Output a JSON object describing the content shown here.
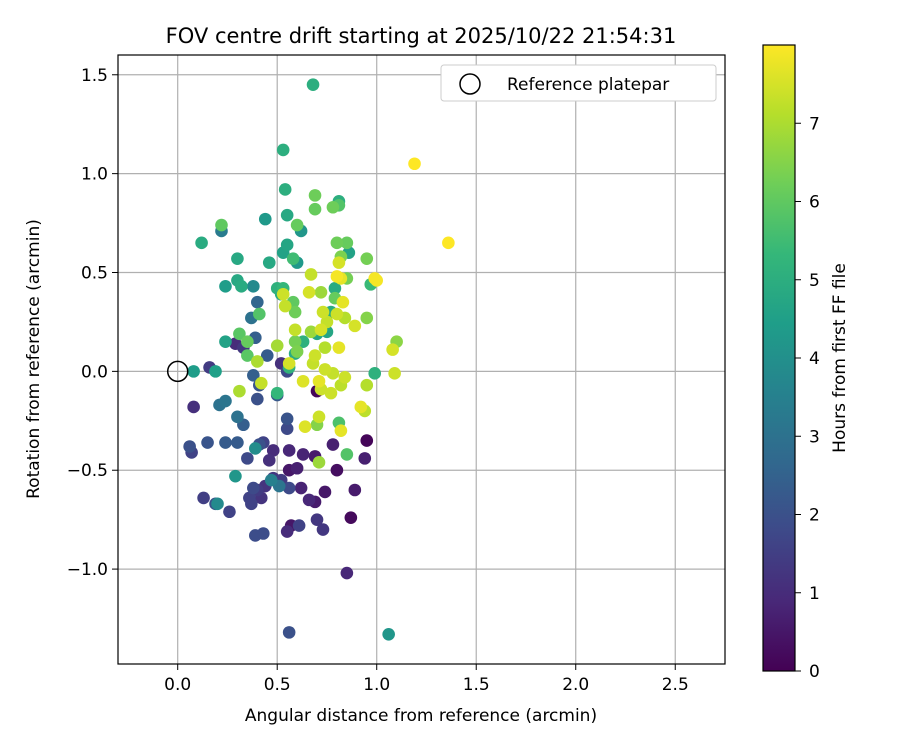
{
  "chart_data": {
    "type": "scatter",
    "title": "FOV centre drift starting at 2025/10/22 21:54:31",
    "xlabel": "Angular distance from reference (arcmin)",
    "ylabel": "Rotation from reference (arcmin)",
    "xlim": [
      -0.3,
      2.75
    ],
    "ylim": [
      -1.48,
      1.6
    ],
    "xticks": [
      0.0,
      0.5,
      1.0,
      1.5,
      2.0,
      2.5
    ],
    "xtick_labels": [
      "0.0",
      "0.5",
      "1.0",
      "1.5",
      "2.0",
      "2.5"
    ],
    "yticks": [
      -1.0,
      -0.5,
      0.0,
      0.5,
      1.0,
      1.5
    ],
    "ytick_labels": [
      "−1.0",
      "−0.5",
      "0.0",
      "0.5",
      "1.0",
      "1.5"
    ],
    "grid": true,
    "legend": {
      "label": "Reference platepar",
      "placement": "top-right"
    },
    "reference_point": {
      "x": 0.0,
      "y": 0.0
    },
    "colorbar": {
      "label": "Hours from first FF file",
      "range": [
        0,
        8
      ],
      "ticks": [
        0,
        1,
        2,
        3,
        4,
        5,
        6,
        7
      ],
      "tick_labels": [
        "0",
        "1",
        "2",
        "3",
        "4",
        "5",
        "6",
        "7"
      ],
      "colormap": [
        "#440154",
        "#482878",
        "#3e4989",
        "#31688e",
        "#26828e",
        "#1f9e89",
        "#35b779",
        "#6ece58",
        "#b5de2b",
        "#fde725"
      ]
    },
    "points": [
      {
        "x": 0.7,
        "y": -0.1,
        "h": 0.1
      },
      {
        "x": 0.95,
        "y": -0.35,
        "h": 0.1
      },
      {
        "x": 0.87,
        "y": -0.74,
        "h": 0.2
      },
      {
        "x": 0.85,
        "y": -1.02,
        "h": 0.9
      },
      {
        "x": 0.8,
        "y": -0.5,
        "h": 0.3
      },
      {
        "x": 0.89,
        "y": -0.6,
        "h": 0.6
      },
      {
        "x": 0.94,
        "y": -0.44,
        "h": 0.7
      },
      {
        "x": 0.78,
        "y": -0.37,
        "h": 0.7
      },
      {
        "x": 0.74,
        "y": -0.61,
        "h": 0.5
      },
      {
        "x": 0.69,
        "y": -0.43,
        "h": 0.6
      },
      {
        "x": 0.63,
        "y": -0.42,
        "h": 0.8
      },
      {
        "x": 0.56,
        "y": -0.4,
        "h": 0.9
      },
      {
        "x": 0.56,
        "y": -0.5,
        "h": 0.5
      },
      {
        "x": 0.6,
        "y": -0.49,
        "h": 0.7
      },
      {
        "x": 0.62,
        "y": -0.59,
        "h": 0.8
      },
      {
        "x": 0.66,
        "y": -0.65,
        "h": 0.9
      },
      {
        "x": 0.69,
        "y": -0.66,
        "h": 0.6
      },
      {
        "x": 0.7,
        "y": -0.75,
        "h": 1.3
      },
      {
        "x": 0.73,
        "y": -0.8,
        "h": 1.3
      },
      {
        "x": 0.57,
        "y": -0.78,
        "h": 0.5
      },
      {
        "x": 0.55,
        "y": -0.81,
        "h": 1.0
      },
      {
        "x": 0.61,
        "y": -0.78,
        "h": 1.6
      },
      {
        "x": 0.56,
        "y": -1.32,
        "h": 2.0
      },
      {
        "x": 0.48,
        "y": -0.4,
        "h": 1.0
      },
      {
        "x": 0.46,
        "y": -0.45,
        "h": 1.1
      },
      {
        "x": 0.48,
        "y": -0.54,
        "h": 1.3
      },
      {
        "x": 0.52,
        "y": -0.55,
        "h": 1.4
      },
      {
        "x": 0.56,
        "y": -0.59,
        "h": 1.8
      },
      {
        "x": 0.44,
        "y": -0.58,
        "h": 1.2
      },
      {
        "x": 0.42,
        "y": -0.64,
        "h": 1.2
      },
      {
        "x": 0.4,
        "y": -0.6,
        "h": 1.4
      },
      {
        "x": 0.38,
        "y": -0.59,
        "h": 1.8
      },
      {
        "x": 0.36,
        "y": -0.64,
        "h": 1.6
      },
      {
        "x": 0.37,
        "y": -0.67,
        "h": 1.6
      },
      {
        "x": 0.39,
        "y": -0.83,
        "h": 1.9
      },
      {
        "x": 0.43,
        "y": -0.82,
        "h": 1.9
      },
      {
        "x": 0.26,
        "y": -0.71,
        "h": 1.6
      },
      {
        "x": 0.19,
        "y": -0.67,
        "h": 2.0
      },
      {
        "x": 0.13,
        "y": -0.64,
        "h": 1.5
      },
      {
        "x": 0.2,
        "y": -0.67,
        "h": 3.8
      },
      {
        "x": 0.06,
        "y": -0.38,
        "h": 2.0
      },
      {
        "x": 0.07,
        "y": -0.41,
        "h": 1.6
      },
      {
        "x": 0.15,
        "y": -0.36,
        "h": 2.1
      },
      {
        "x": 0.24,
        "y": -0.36,
        "h": 2.3
      },
      {
        "x": 0.3,
        "y": -0.36,
        "h": 2.3
      },
      {
        "x": 0.08,
        "y": -0.18,
        "h": 1.1
      },
      {
        "x": 0.21,
        "y": -0.17,
        "h": 3.0
      },
      {
        "x": 0.24,
        "y": -0.15,
        "h": 3.1
      },
      {
        "x": 0.3,
        "y": -0.23,
        "h": 3.0
      },
      {
        "x": 0.33,
        "y": -0.27,
        "h": 2.4
      },
      {
        "x": 0.35,
        "y": -0.44,
        "h": 1.8
      },
      {
        "x": 0.39,
        "y": -0.39,
        "h": 3.9
      },
      {
        "x": 0.41,
        "y": -0.37,
        "h": 2.0
      },
      {
        "x": 0.43,
        "y": -0.36,
        "h": 1.6
      },
      {
        "x": 0.4,
        "y": -0.14,
        "h": 2.0
      },
      {
        "x": 0.38,
        "y": -0.02,
        "h": 2.4
      },
      {
        "x": 0.41,
        "y": -0.07,
        "h": 2.1
      },
      {
        "x": 0.5,
        "y": -0.12,
        "h": 2.2
      },
      {
        "x": 0.55,
        "y": -0.24,
        "h": 2.1
      },
      {
        "x": 0.55,
        "y": -0.29,
        "h": 1.8
      },
      {
        "x": 0.16,
        "y": 0.02,
        "h": 1.4
      },
      {
        "x": 0.29,
        "y": 0.14,
        "h": 1.0
      },
      {
        "x": 0.33,
        "y": 0.12,
        "h": 1.3
      },
      {
        "x": 0.39,
        "y": 0.17,
        "h": 2.4
      },
      {
        "x": 0.37,
        "y": 0.27,
        "h": 3.0
      },
      {
        "x": 0.4,
        "y": 0.35,
        "h": 2.6
      },
      {
        "x": 0.45,
        "y": 0.08,
        "h": 2.3
      },
      {
        "x": 0.52,
        "y": 0.04,
        "h": 1.1
      },
      {
        "x": 0.55,
        "y": 0.0,
        "h": 1.8
      },
      {
        "x": 0.08,
        "y": 0.0,
        "h": 4.4
      },
      {
        "x": 0.19,
        "y": 0.0,
        "h": 4.5
      },
      {
        "x": 0.24,
        "y": 0.15,
        "h": 4.6
      },
      {
        "x": 0.29,
        "y": -0.53,
        "h": 4.2
      },
      {
        "x": 0.24,
        "y": 0.43,
        "h": 4.4
      },
      {
        "x": 0.3,
        "y": 0.46,
        "h": 4.8
      },
      {
        "x": 0.32,
        "y": 0.43,
        "h": 4.9
      },
      {
        "x": 0.38,
        "y": 0.43,
        "h": 3.8
      },
      {
        "x": 0.3,
        "y": 0.57,
        "h": 4.8
      },
      {
        "x": 0.12,
        "y": 0.65,
        "h": 4.9
      },
      {
        "x": 0.22,
        "y": 0.71,
        "h": 3.3
      },
      {
        "x": 0.44,
        "y": 0.77,
        "h": 4.3
      },
      {
        "x": 0.46,
        "y": 0.55,
        "h": 4.8
      },
      {
        "x": 0.53,
        "y": 0.6,
        "h": 4.6
      },
      {
        "x": 0.55,
        "y": 0.64,
        "h": 4.7
      },
      {
        "x": 0.6,
        "y": 0.55,
        "h": 4.3
      },
      {
        "x": 0.58,
        "y": 0.57,
        "h": 5.5
      },
      {
        "x": 0.62,
        "y": 0.71,
        "h": 4.2
      },
      {
        "x": 0.55,
        "y": 0.79,
        "h": 4.8
      },
      {
        "x": 0.54,
        "y": 0.92,
        "h": 5.0
      },
      {
        "x": 0.53,
        "y": 1.12,
        "h": 5.0
      },
      {
        "x": 0.68,
        "y": 1.45,
        "h": 5.0
      },
      {
        "x": 0.81,
        "y": 0.86,
        "h": 5.0
      },
      {
        "x": 0.86,
        "y": 0.6,
        "h": 4.6
      },
      {
        "x": 0.79,
        "y": 0.42,
        "h": 4.9
      },
      {
        "x": 0.77,
        "y": 0.3,
        "h": 4.9
      },
      {
        "x": 0.75,
        "y": 0.2,
        "h": 4.7
      },
      {
        "x": 0.7,
        "y": 0.19,
        "h": 4.7
      },
      {
        "x": 0.63,
        "y": 0.15,
        "h": 5.1
      },
      {
        "x": 0.59,
        "y": 0.09,
        "h": 4.9
      },
      {
        "x": 0.56,
        "y": 0.02,
        "h": 5.2
      },
      {
        "x": 0.5,
        "y": 0.42,
        "h": 5.1
      },
      {
        "x": 0.52,
        "y": 0.39,
        "h": 4.9
      },
      {
        "x": 0.53,
        "y": 0.42,
        "h": 5.3
      },
      {
        "x": 0.5,
        "y": -0.11,
        "h": 5.3
      },
      {
        "x": 0.47,
        "y": -0.55,
        "h": 3.5
      },
      {
        "x": 0.51,
        "y": -0.58,
        "h": 3.1
      },
      {
        "x": 0.99,
        "y": -0.01,
        "h": 5.1
      },
      {
        "x": 0.97,
        "y": 0.44,
        "h": 5.4
      },
      {
        "x": 0.85,
        "y": -0.42,
        "h": 5.8
      },
      {
        "x": 0.81,
        "y": -0.26,
        "h": 5.7
      },
      {
        "x": 0.35,
        "y": 0.08,
        "h": 5.9
      },
      {
        "x": 0.31,
        "y": 0.19,
        "h": 5.9
      },
      {
        "x": 0.35,
        "y": 0.15,
        "h": 6.1
      },
      {
        "x": 0.41,
        "y": 0.29,
        "h": 5.8
      },
      {
        "x": 0.22,
        "y": 0.74,
        "h": 6.0
      },
      {
        "x": 0.6,
        "y": 0.74,
        "h": 6.1
      },
      {
        "x": 0.58,
        "y": 0.35,
        "h": 6.0
      },
      {
        "x": 0.59,
        "y": 0.3,
        "h": 6.2
      },
      {
        "x": 0.59,
        "y": 0.15,
        "h": 6.3
      },
      {
        "x": 0.6,
        "y": 0.1,
        "h": 6.4
      },
      {
        "x": 0.69,
        "y": 0.89,
        "h": 6.2
      },
      {
        "x": 0.69,
        "y": 0.82,
        "h": 6.1
      },
      {
        "x": 0.78,
        "y": 0.83,
        "h": 6.2
      },
      {
        "x": 0.81,
        "y": 0.84,
        "h": 5.8
      },
      {
        "x": 0.8,
        "y": 0.65,
        "h": 6.2
      },
      {
        "x": 0.85,
        "y": 0.65,
        "h": 6.1
      },
      {
        "x": 0.82,
        "y": 0.58,
        "h": 6.4
      },
      {
        "x": 0.85,
        "y": 0.47,
        "h": 6.3
      },
      {
        "x": 0.79,
        "y": 0.37,
        "h": 6.1
      },
      {
        "x": 0.95,
        "y": 0.57,
        "h": 6.3
      },
      {
        "x": 0.95,
        "y": 0.27,
        "h": 6.5
      },
      {
        "x": 1.1,
        "y": 0.15,
        "h": 6.6
      },
      {
        "x": 0.67,
        "y": 0.2,
        "h": 6.8
      },
      {
        "x": 0.72,
        "y": 0.4,
        "h": 6.8
      },
      {
        "x": 0.7,
        "y": -0.27,
        "h": 6.5
      },
      {
        "x": 0.71,
        "y": -0.46,
        "h": 6.8
      },
      {
        "x": 0.42,
        "y": -0.06,
        "h": 7.3
      },
      {
        "x": 0.31,
        "y": -0.1,
        "h": 7.0
      },
      {
        "x": 0.4,
        "y": 0.05,
        "h": 7.0
      },
      {
        "x": 0.5,
        "y": 0.13,
        "h": 6.9
      },
      {
        "x": 0.54,
        "y": 0.33,
        "h": 7.3
      },
      {
        "x": 0.53,
        "y": 0.39,
        "h": 7.4
      },
      {
        "x": 0.59,
        "y": 0.21,
        "h": 7.3
      },
      {
        "x": 0.56,
        "y": 0.04,
        "h": 7.5
      },
      {
        "x": 0.63,
        "y": -0.05,
        "h": 7.6
      },
      {
        "x": 0.67,
        "y": 0.49,
        "h": 7.3
      },
      {
        "x": 0.66,
        "y": 0.4,
        "h": 7.5
      },
      {
        "x": 0.73,
        "y": 0.3,
        "h": 7.4
      },
      {
        "x": 0.75,
        "y": 0.25,
        "h": 7.3
      },
      {
        "x": 0.72,
        "y": 0.21,
        "h": 7.5
      },
      {
        "x": 0.69,
        "y": 0.08,
        "h": 7.4
      },
      {
        "x": 0.68,
        "y": 0.04,
        "h": 7.3
      },
      {
        "x": 0.74,
        "y": 0.12,
        "h": 7.1
      },
      {
        "x": 0.74,
        "y": 0.01,
        "h": 7.4
      },
      {
        "x": 0.71,
        "y": -0.05,
        "h": 7.7
      },
      {
        "x": 0.72,
        "y": -0.09,
        "h": 7.4
      },
      {
        "x": 0.78,
        "y": -0.01,
        "h": 7.3
      },
      {
        "x": 0.82,
        "y": -0.07,
        "h": 7.2
      },
      {
        "x": 0.81,
        "y": 0.12,
        "h": 7.7
      },
      {
        "x": 0.84,
        "y": -0.03,
        "h": 7.4
      },
      {
        "x": 0.77,
        "y": -0.11,
        "h": 7.4
      },
      {
        "x": 0.71,
        "y": -0.23,
        "h": 7.4
      },
      {
        "x": 0.64,
        "y": -0.28,
        "h": 7.6
      },
      {
        "x": 0.82,
        "y": -0.3,
        "h": 7.7
      },
      {
        "x": 0.92,
        "y": -0.18,
        "h": 7.7
      },
      {
        "x": 0.94,
        "y": -0.2,
        "h": 7.2
      },
      {
        "x": 0.8,
        "y": 0.48,
        "h": 7.9
      },
      {
        "x": 0.81,
        "y": 0.55,
        "h": 7.5
      },
      {
        "x": 0.82,
        "y": 0.47,
        "h": 7.7
      },
      {
        "x": 0.83,
        "y": 0.35,
        "h": 7.7
      },
      {
        "x": 0.8,
        "y": 0.29,
        "h": 7.4
      },
      {
        "x": 0.84,
        "y": 0.27,
        "h": 7.1
      },
      {
        "x": 0.89,
        "y": 0.23,
        "h": 7.5
      },
      {
        "x": 0.95,
        "y": -0.07,
        "h": 7.1
      },
      {
        "x": 1.0,
        "y": 0.46,
        "h": 7.9
      },
      {
        "x": 0.99,
        "y": 0.47,
        "h": 7.9
      },
      {
        "x": 1.08,
        "y": 0.11,
        "h": 7.5
      },
      {
        "x": 1.09,
        "y": -0.01,
        "h": 7.4
      },
      {
        "x": 1.19,
        "y": 1.05,
        "h": 8.0
      },
      {
        "x": 1.36,
        "y": 0.65,
        "h": 8.0
      },
      {
        "x": 1.06,
        "y": -1.33,
        "h": 4.2
      }
    ]
  }
}
